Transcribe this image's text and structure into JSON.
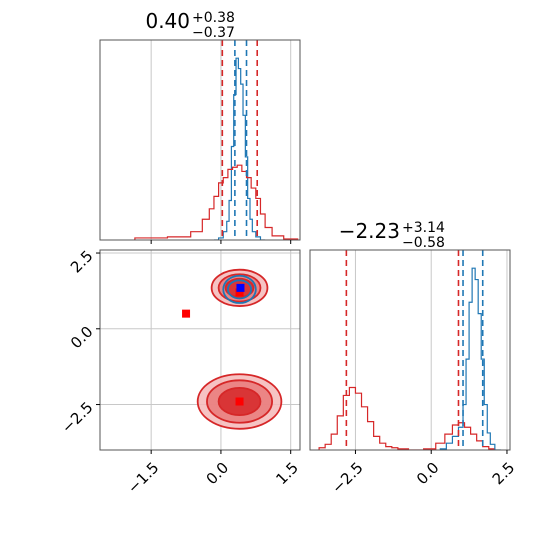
{
  "colors": {
    "blue": "#1f77b4",
    "red": "#d62728",
    "grid": "#c8c8c8",
    "axis": "#555555"
  },
  "chart_data": [
    {
      "type": "histogram",
      "panel": "top-left",
      "title": {
        "value": "0.40",
        "plus": "+0.38",
        "minus": "−0.37"
      },
      "xlim": [
        -2.6,
        1.7
      ],
      "grid": true,
      "series": [
        {
          "color": "#1f77b4",
          "x": [
            -0.1,
            0.0,
            0.1,
            0.15,
            0.2,
            0.25,
            0.3,
            0.35,
            0.4,
            0.45,
            0.5,
            0.55,
            0.6,
            0.65,
            0.7,
            0.8,
            0.9
          ],
          "values": [
            0,
            2,
            8,
            18,
            38,
            90,
            140,
            175,
            165,
            150,
            120,
            80,
            40,
            20,
            8,
            3,
            0
          ]
        },
        {
          "color": "#d62728",
          "x": [
            -1.5,
            -0.8,
            -0.5,
            -0.3,
            -0.2,
            -0.1,
            0.0,
            0.1,
            0.2,
            0.3,
            0.4,
            0.5,
            0.6,
            0.7,
            0.8,
            0.9,
            1.0,
            1.2,
            1.5
          ],
          "values": [
            2,
            3,
            8,
            20,
            30,
            42,
            55,
            60,
            68,
            70,
            72,
            66,
            60,
            50,
            40,
            25,
            12,
            4,
            1
          ]
        }
      ],
      "vlines": [
        {
          "x": 0.03,
          "color": "#d62728"
        },
        {
          "x": 0.3,
          "color": "#1f77b4"
        },
        {
          "x": 0.55,
          "color": "#1f77b4"
        },
        {
          "x": 0.78,
          "color": "#d62728"
        }
      ]
    },
    {
      "type": "contour",
      "panel": "bottom-left",
      "xlim": [
        -2.6,
        1.7
      ],
      "ylim": [
        -4.0,
        2.6
      ],
      "xticks": [
        "−1.5",
        "0.0",
        "1.5"
      ],
      "xtick_values": [
        -1.5,
        0.0,
        1.5
      ],
      "yticks": [
        "2.5",
        "0.0",
        "−2.5"
      ],
      "ytick_values": [
        2.5,
        0.0,
        -2.5
      ],
      "grid": true,
      "blobs": [
        {
          "cx": 0.4,
          "cy": -2.4,
          "rx": [
            0.9,
            0.7,
            0.45
          ],
          "ry": [
            0.9,
            0.7,
            0.45
          ],
          "color": "#d62728"
        },
        {
          "cx": 0.4,
          "cy": 1.35,
          "rx": [
            0.6,
            0.45,
            0.3
          ],
          "ry": [
            0.6,
            0.45,
            0.3
          ],
          "color": "#d62728"
        },
        {
          "cx": 0.4,
          "cy": 1.3,
          "rx": [
            0.35,
            0.25
          ],
          "ry": [
            0.45,
            0.3
          ],
          "color": "#1f77b4"
        }
      ],
      "markers": [
        {
          "x": -0.75,
          "y": 0.5,
          "color": "#ff0000"
        },
        {
          "x": 0.4,
          "y": 1.2,
          "color": "#ff0000"
        },
        {
          "x": 0.4,
          "y": -2.4,
          "color": "#ff0000"
        },
        {
          "x": 0.42,
          "y": 1.35,
          "color": "#0000ff"
        }
      ]
    },
    {
      "type": "histogram",
      "panel": "bottom-right",
      "title": {
        "value": "−2.23",
        "plus": "+3.14",
        "minus": "−0.58"
      },
      "xlim": [
        -4.0,
        2.6
      ],
      "xticks": [
        "−2.5",
        "0.0",
        "2.5"
      ],
      "xtick_values": [
        -2.5,
        0.0,
        2.5
      ],
      "grid": true,
      "series": [
        {
          "color": "#d62728",
          "x": [
            -3.6,
            -3.4,
            -3.2,
            -3.0,
            -2.8,
            -2.6,
            -2.4,
            -2.2,
            -2.0,
            -1.8,
            -1.6,
            -1.4,
            -1.2,
            -1.0,
            -0.5,
            0.0,
            0.3,
            0.6,
            0.8,
            1.0,
            1.2,
            1.4,
            1.6,
            1.8,
            2.0
          ],
          "values": [
            2,
            5,
            14,
            30,
            48,
            55,
            50,
            38,
            25,
            12,
            6,
            3,
            2,
            1,
            0,
            1,
            6,
            14,
            22,
            24,
            20,
            14,
            8,
            3,
            1
          ]
        },
        {
          "color": "#1f77b4",
          "x": [
            0.4,
            0.6,
            0.8,
            1.0,
            1.1,
            1.2,
            1.3,
            1.4,
            1.5,
            1.6,
            1.7,
            1.8,
            1.9,
            2.0,
            2.2
          ],
          "values": [
            1,
            6,
            12,
            20,
            40,
            80,
            130,
            160,
            150,
            120,
            80,
            40,
            15,
            5,
            0
          ]
        }
      ],
      "vlines": [
        {
          "x": -2.8,
          "color": "#d62728"
        },
        {
          "x": 0.9,
          "color": "#d62728"
        },
        {
          "x": 1.05,
          "color": "#1f77b4"
        },
        {
          "x": 1.7,
          "color": "#1f77b4"
        }
      ]
    }
  ]
}
